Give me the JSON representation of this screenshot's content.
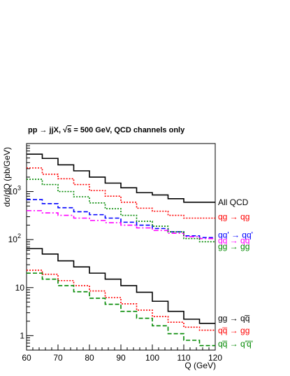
{
  "chart_data": {
    "type": "line",
    "style": "step-histogram",
    "title_plain": "pp → jjX, ",
    "title_sqrt": "√",
    "title_s": "s",
    "title_rest": " = 500 GeV, QCD channels only",
    "xlabel": "Q (GeV)",
    "ylabel": "dσ/dQ (pb/GeV)",
    "xlim": [
      60,
      120
    ],
    "ylim": [
      0.5,
      10000
    ],
    "yscale": "log",
    "x_ticks": [
      "60",
      "70",
      "80",
      "90",
      "100",
      "110",
      "120"
    ],
    "y_ticks": [
      {
        "value": 1,
        "label": "1"
      },
      {
        "value": 10,
        "label": "10"
      },
      {
        "value": 100,
        "label": "10",
        "exp": "2"
      },
      {
        "value": 1000,
        "label": "10",
        "exp": "3"
      }
    ],
    "bin_edges": [
      60,
      65,
      70,
      75,
      80,
      85,
      90,
      95,
      100,
      105,
      110,
      115,
      120
    ],
    "grid": false,
    "legend": "right, at line ends",
    "series": [
      {
        "name": "All QCD",
        "color": "#000000",
        "dash": "solid",
        "values": [
          6000,
          4900,
          3600,
          2700,
          2000,
          1500,
          1200,
          950,
          850,
          710,
          600,
          600
        ]
      },
      {
        "name": "qg → qg",
        "color": "#ff0000",
        "dash": "dotted",
        "values": [
          3100,
          2300,
          1850,
          1400,
          1050,
          800,
          600,
          450,
          390,
          320,
          280,
          280
        ]
      },
      {
        "name": "qq' → qq'",
        "color": "#0000ff",
        "dash": "dashed",
        "values": [
          680,
          560,
          460,
          380,
          330,
          280,
          230,
          200,
          170,
          145,
          120,
          110
        ]
      },
      {
        "name": "qq → qq",
        "color": "#ff00ff",
        "dash": "dashdot",
        "values": [
          400,
          360,
          320,
          280,
          250,
          225,
          200,
          175,
          155,
          135,
          115,
          105
        ]
      },
      {
        "name": "gg → gg",
        "color": "#008800",
        "dash": "dotted",
        "values": [
          1800,
          1400,
          1000,
          780,
          580,
          440,
          320,
          240,
          190,
          145,
          105,
          90
        ]
      },
      {
        "name": "gg → qq̅",
        "color": "#000000",
        "dash": "solid",
        "values": [
          65,
          50,
          36,
          27,
          20,
          15,
          11,
          8,
          5.2,
          3.2,
          2.2,
          1.8
        ]
      },
      {
        "name": "qq̅ → gg",
        "color": "#ff0000",
        "dash": "dotted",
        "values": [
          23,
          19,
          14,
          11,
          8.5,
          6.2,
          4.6,
          3.4,
          2.5,
          1.9,
          1.5,
          1.3
        ]
      },
      {
        "name": "qq̅ → q'q̅'",
        "color": "#008800",
        "dash": "dashed",
        "values": [
          20,
          15,
          11,
          8.2,
          6.0,
          4.5,
          3.2,
          2.3,
          1.6,
          1.1,
          0.8,
          0.62
        ]
      }
    ],
    "legend_labels": [
      {
        "label": "All QCD",
        "color": "#000000",
        "y_value": 600
      },
      {
        "label": "qg → qg",
        "color": "#ff0000",
        "y_value": 300
      },
      {
        "label": "qq' → qq'",
        "color": "#0000ff",
        "y_value": 125
      },
      {
        "label": "qq → qq",
        "color": "#ff00ff",
        "y_value": 95
      },
      {
        "label": "gg → gg",
        "color": "#008800",
        "y_value": 72
      },
      {
        "label": "gg → qq̅",
        "color": "#000000",
        "y_value": 2.3
      },
      {
        "label": "qq̅ → gg",
        "color": "#ff0000",
        "y_value": 1.28
      },
      {
        "label": "qq̅ → q'q̅'",
        "color": "#008800",
        "y_value": 0.68
      }
    ]
  }
}
